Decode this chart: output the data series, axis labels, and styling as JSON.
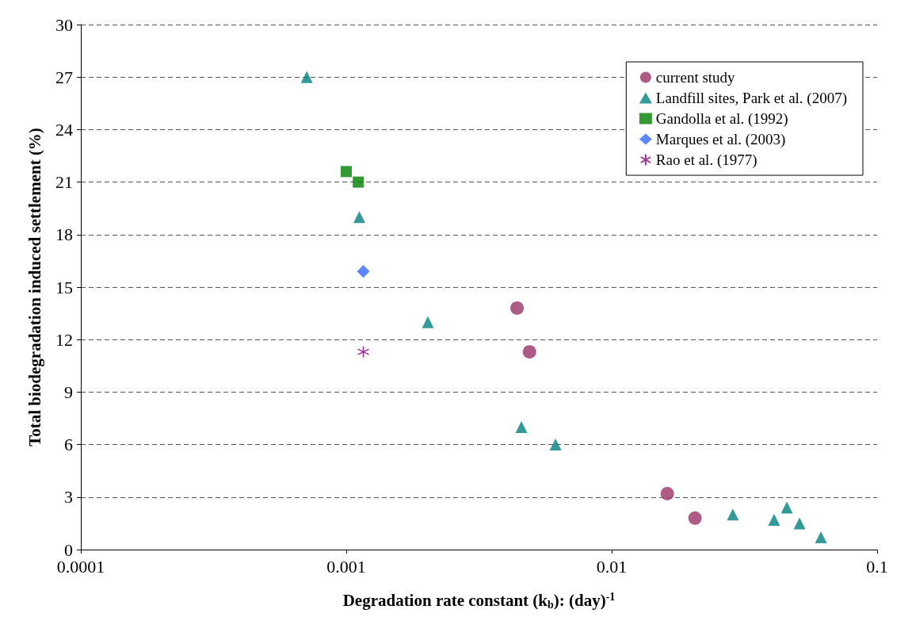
{
  "chart_data": {
    "type": "scatter",
    "xlabel": "Degradation rate constant (k$_{b}$): (day)$^{-1}$",
    "ylabel": "Total biodegradation induced settlement (%)",
    "log": "x",
    "xlim": [
      0.0001,
      0.1
    ],
    "xticks": [
      0.0001,
      0.001,
      0.01,
      0.1
    ],
    "ylim": [
      0,
      30
    ],
    "yticks": [
      0,
      3,
      6,
      9,
      12,
      15,
      18,
      21,
      24,
      27,
      30
    ],
    "grid": "y",
    "legend": "top right",
    "series": [
      {
        "name": "current study",
        "color": "#993366",
        "marker": "circle",
        "x": [
          0.0044,
          0.0049,
          0.0162,
          0.0206
        ],
        "values": [
          13.8,
          11.3,
          3.2,
          1.8
        ]
      },
      {
        "name": "Landfill sites, Park et al. (2007)",
        "color": "#008080",
        "marker": "triangle",
        "x": [
          0.00071,
          0.00112,
          0.00203,
          0.00457,
          0.00614,
          0.0286,
          0.0409,
          0.0457,
          0.051,
          0.0614
        ],
        "values": [
          27,
          19,
          13,
          7,
          6,
          2,
          1.7,
          2.4,
          1.5,
          0.7
        ]
      },
      {
        "name": "Gandolla et al. (1992)",
        "color": "#008000",
        "marker": "square",
        "x": [
          0.001,
          0.00111
        ],
        "values": [
          21.6,
          21
        ]
      },
      {
        "name": "Marques et al. (2003)",
        "color": "#3366ff",
        "marker": "diamond",
        "x": [
          0.00116
        ],
        "values": [
          15.9
        ]
      },
      {
        "name": "Rao et al. (1977)",
        "color": "#800080",
        "marker": "cross",
        "x": [
          0.00116
        ],
        "values": [
          11.3
        ]
      }
    ]
  }
}
